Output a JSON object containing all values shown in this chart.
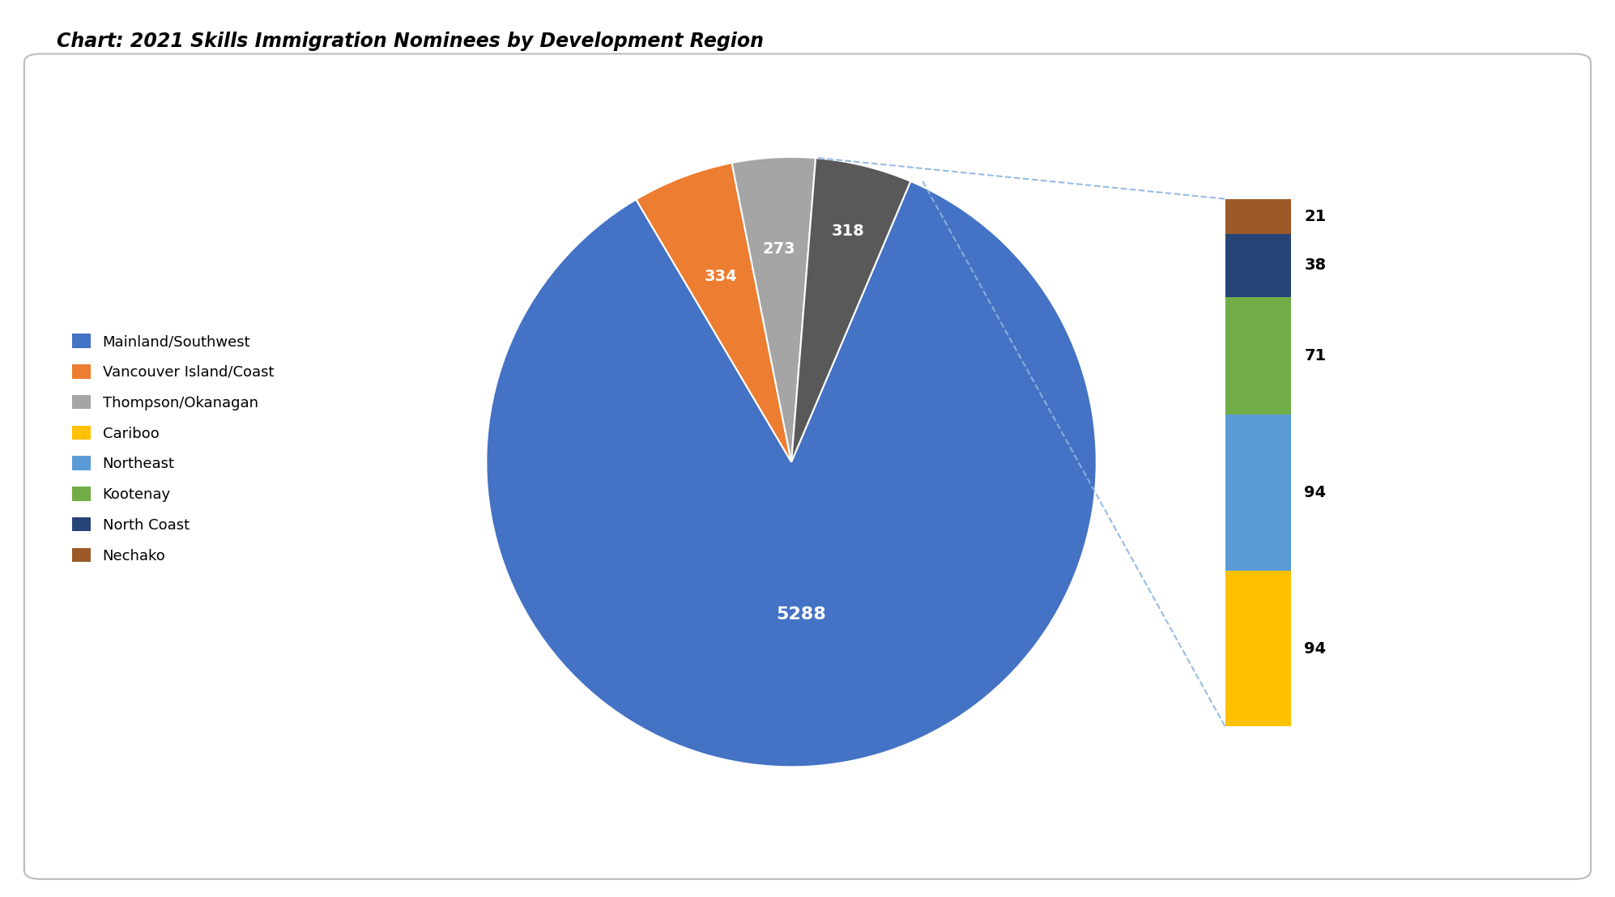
{
  "title": "Chart: 2021 Skills Immigration Nominees by Development Region",
  "labels": [
    "Mainland/Southwest",
    "Vancouver Island/Coast",
    "Thompson/Okanagan",
    "Cariboo",
    "Northeast",
    "Kootenay",
    "North Coast",
    "Nechako"
  ],
  "legend_colors": [
    "#4472C4",
    "#ED7D31",
    "#A5A5A5",
    "#FFC000",
    "#5B9BD5",
    "#70AD47",
    "#264478",
    "#9C5A28"
  ],
  "pie_values": [
    5288,
    334,
    273,
    318
  ],
  "pie_colors": [
    "#4472C4",
    "#ED7D31",
    "#A5A5A5",
    "#595959"
  ],
  "pie_labels": [
    "5288",
    "334",
    "273",
    "318"
  ],
  "pie_label_colors": [
    "white",
    "white",
    "white",
    "white"
  ],
  "bar_values": [
    94,
    94,
    71,
    38,
    21
  ],
  "bar_colors": [
    "#FFC000",
    "#5B9BD5",
    "#70AD47",
    "#264478",
    "#9C5A28"
  ],
  "background_color": "#FFFFFF",
  "title_fontsize": 17,
  "connector_color": "#8DB4E2",
  "startangle": 67
}
